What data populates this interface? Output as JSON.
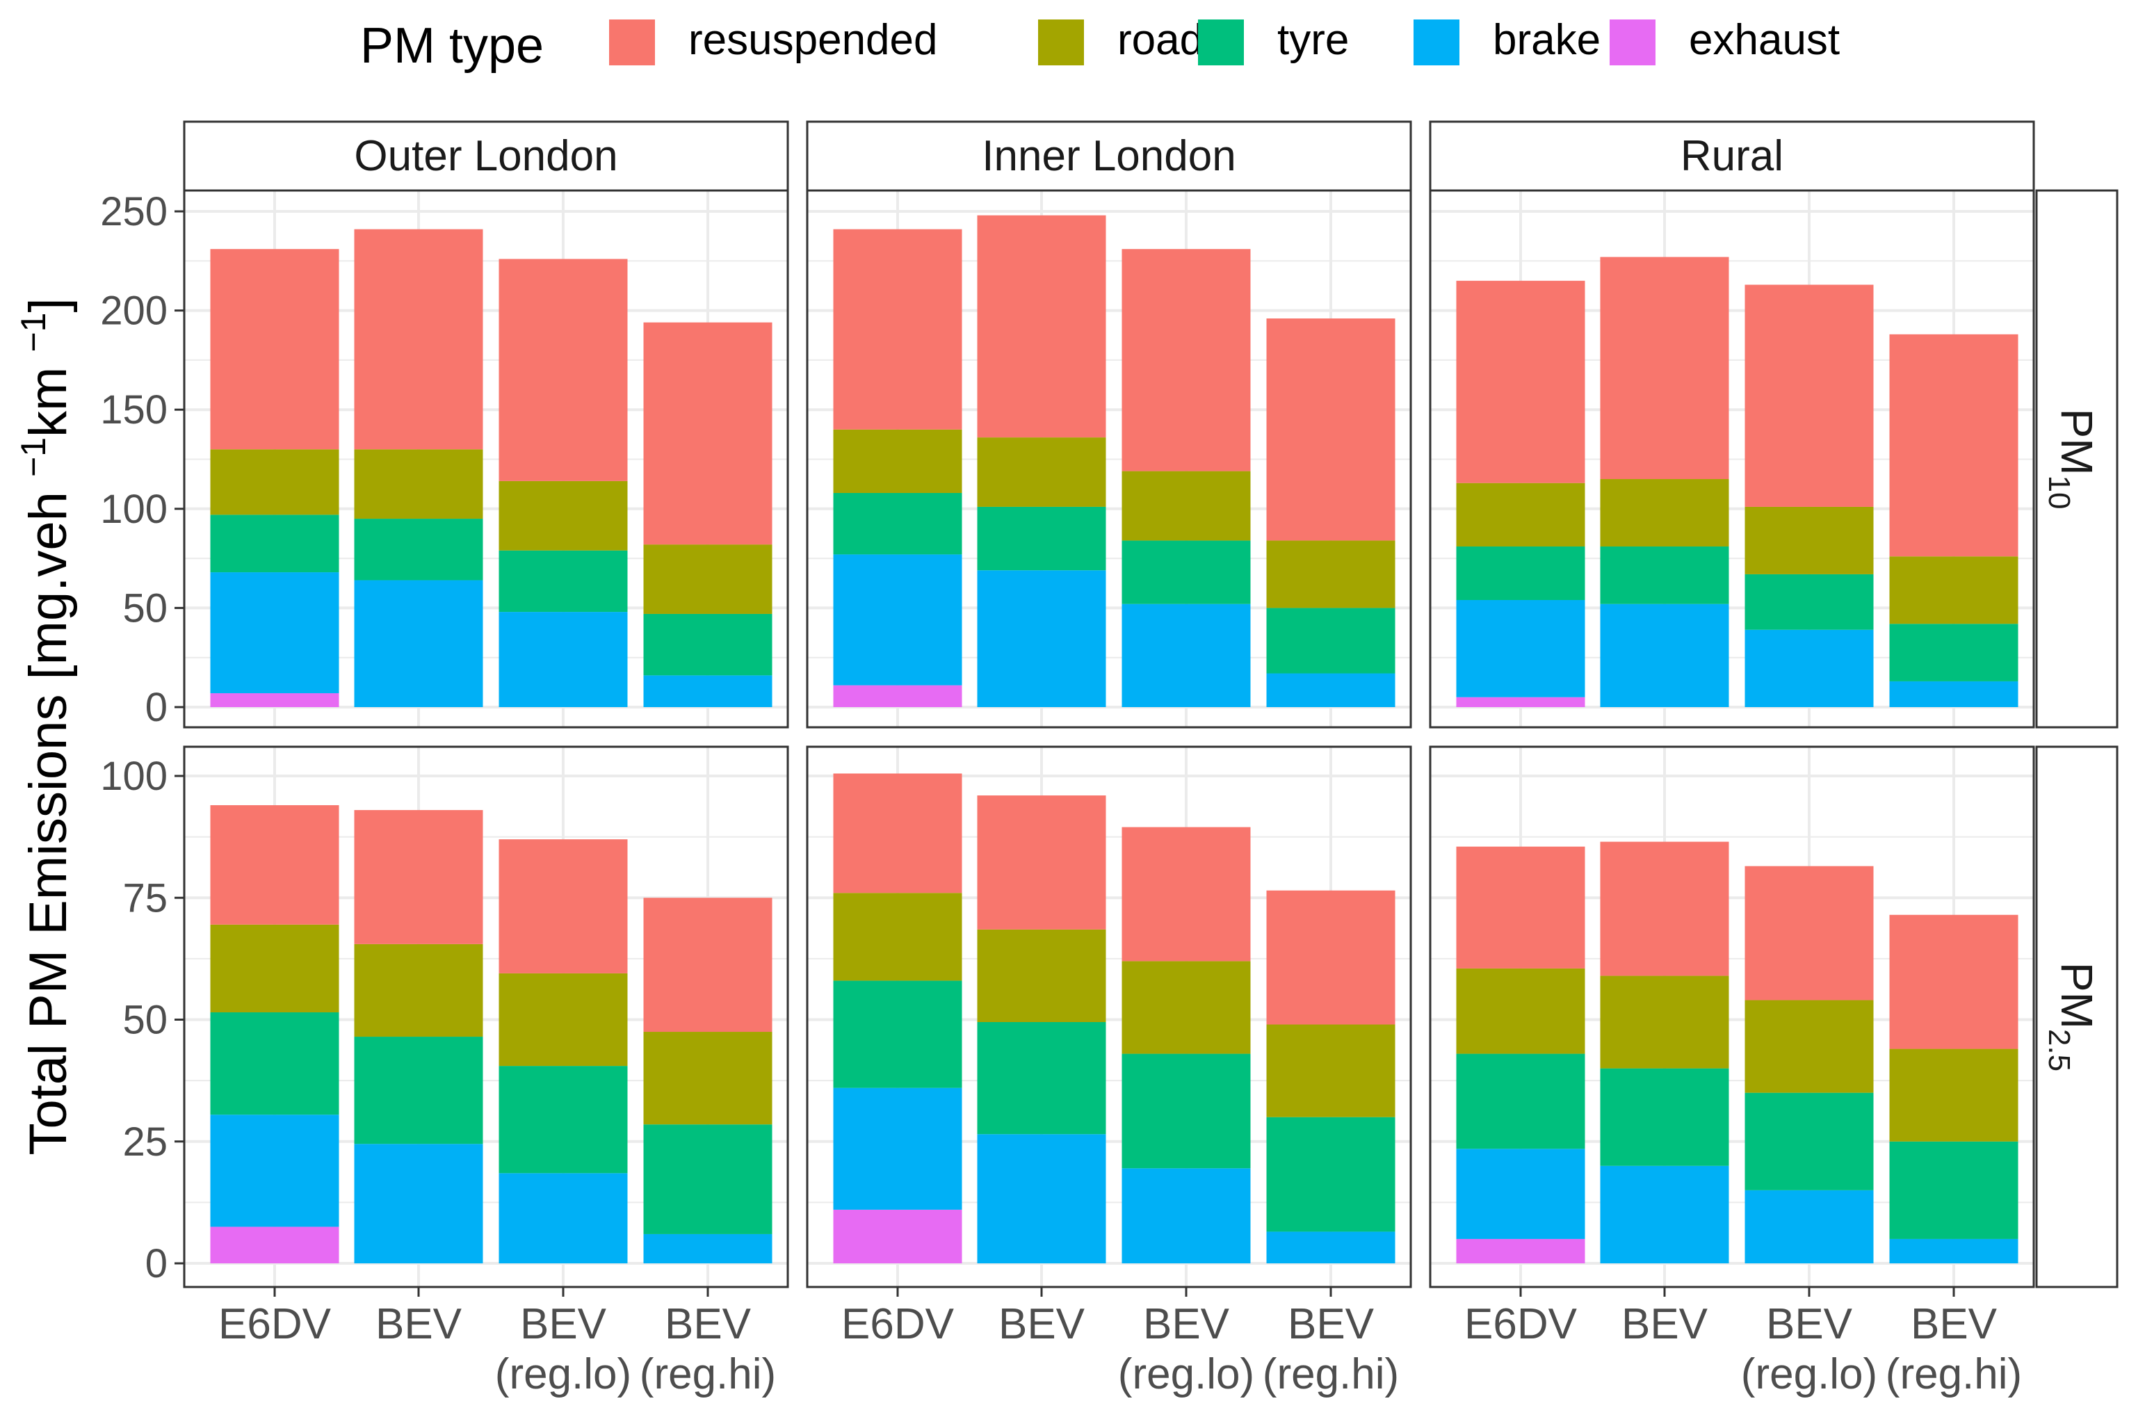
{
  "chart_data": {
    "type": "bar",
    "stacked": true,
    "facet_columns": [
      "Outer London",
      "Inner London",
      "Rural"
    ],
    "facet_rows": [
      {
        "key": "PM10",
        "label_main": "PM",
        "label_sub": "10",
        "ylim": [
          0,
          260
        ],
        "yticks": [
          0,
          50,
          100,
          150,
          200,
          250
        ]
      },
      {
        "key": "PM2.5",
        "label_main": "PM",
        "label_sub": "2.5",
        "ylim": [
          0,
          105
        ],
        "yticks": [
          0,
          25,
          50,
          75,
          100
        ]
      }
    ],
    "categories": [
      {
        "line1": "E6DV",
        "line2": ""
      },
      {
        "line1": "BEV",
        "line2": ""
      },
      {
        "line1": "BEV",
        "line2": "(reg.lo)"
      },
      {
        "line1": "BEV",
        "line2": "(reg.hi)"
      }
    ],
    "legend": {
      "title": "PM type",
      "position": "top",
      "items": [
        {
          "key": "resuspended",
          "label": "resuspended",
          "color": "#F8766D"
        },
        {
          "key": "road",
          "label": "road",
          "color": "#A3A500"
        },
        {
          "key": "tyre",
          "label": "tyre",
          "color": "#00BF7D"
        },
        {
          "key": "brake",
          "label": "brake",
          "color": "#00B0F6"
        },
        {
          "key": "exhaust",
          "label": "exhaust",
          "color": "#E76BF3"
        }
      ]
    },
    "stack_order": [
      "exhaust",
      "brake",
      "tyre",
      "road",
      "resuspended"
    ],
    "ylabel_main": "Total PM Emissions [mg.veh ",
    "ylabel_parts": {
      "a": "−1",
      "b": "km ",
      "c": "−1",
      "d": "]"
    },
    "values": {
      "PM10": {
        "Outer London": [
          {
            "exhaust": 7,
            "brake": 61,
            "tyre": 29,
            "road": 33,
            "resuspended": 101
          },
          {
            "exhaust": 0,
            "brake": 64,
            "tyre": 31,
            "road": 35,
            "resuspended": 111
          },
          {
            "exhaust": 0,
            "brake": 48,
            "tyre": 31,
            "road": 35,
            "resuspended": 112
          },
          {
            "exhaust": 0,
            "brake": 16,
            "tyre": 31,
            "road": 35,
            "resuspended": 112
          }
        ],
        "Inner London": [
          {
            "exhaust": 11,
            "brake": 66,
            "tyre": 31,
            "road": 32,
            "resuspended": 101
          },
          {
            "exhaust": 0,
            "brake": 69,
            "tyre": 32,
            "road": 35,
            "resuspended": 112
          },
          {
            "exhaust": 0,
            "brake": 52,
            "tyre": 32,
            "road": 35,
            "resuspended": 112
          },
          {
            "exhaust": 0,
            "brake": 17,
            "tyre": 33,
            "road": 34,
            "resuspended": 112
          }
        ],
        "Rural": [
          {
            "exhaust": 5,
            "brake": 49,
            "tyre": 27,
            "road": 32,
            "resuspended": 102
          },
          {
            "exhaust": 0,
            "brake": 52,
            "tyre": 29,
            "road": 34,
            "resuspended": 112
          },
          {
            "exhaust": 0,
            "brake": 39,
            "tyre": 28,
            "road": 34,
            "resuspended": 112
          },
          {
            "exhaust": 0,
            "brake": 13,
            "tyre": 29,
            "road": 34,
            "resuspended": 112
          }
        ]
      },
      "PM2.5": {
        "Outer London": [
          {
            "exhaust": 7.5,
            "brake": 23,
            "tyre": 21,
            "road": 18,
            "resuspended": 24.5
          },
          {
            "exhaust": 0,
            "brake": 24.5,
            "tyre": 22,
            "road": 19,
            "resuspended": 27.5
          },
          {
            "exhaust": 0,
            "brake": 18.5,
            "tyre": 22,
            "road": 19,
            "resuspended": 27.5
          },
          {
            "exhaust": 0,
            "brake": 6,
            "tyre": 22.5,
            "road": 19,
            "resuspended": 27.5
          }
        ],
        "Inner London": [
          {
            "exhaust": 11,
            "brake": 25,
            "tyre": 22,
            "road": 18,
            "resuspended": 24.5
          },
          {
            "exhaust": 0,
            "brake": 26.5,
            "tyre": 23,
            "road": 19,
            "resuspended": 27.5
          },
          {
            "exhaust": 0,
            "brake": 19.5,
            "tyre": 23.5,
            "road": 19,
            "resuspended": 27.5
          },
          {
            "exhaust": 0,
            "brake": 6.5,
            "tyre": 23.5,
            "road": 19,
            "resuspended": 27.5
          }
        ],
        "Rural": [
          {
            "exhaust": 5,
            "brake": 18.5,
            "tyre": 19.5,
            "road": 17.5,
            "resuspended": 25
          },
          {
            "exhaust": 0,
            "brake": 20,
            "tyre": 20,
            "road": 19,
            "resuspended": 27.5
          },
          {
            "exhaust": 0,
            "brake": 15,
            "tyre": 20,
            "road": 19,
            "resuspended": 27.5
          },
          {
            "exhaust": 0,
            "brake": 5,
            "tyre": 20,
            "road": 19,
            "resuspended": 27.5
          }
        ]
      }
    },
    "grid": true
  }
}
